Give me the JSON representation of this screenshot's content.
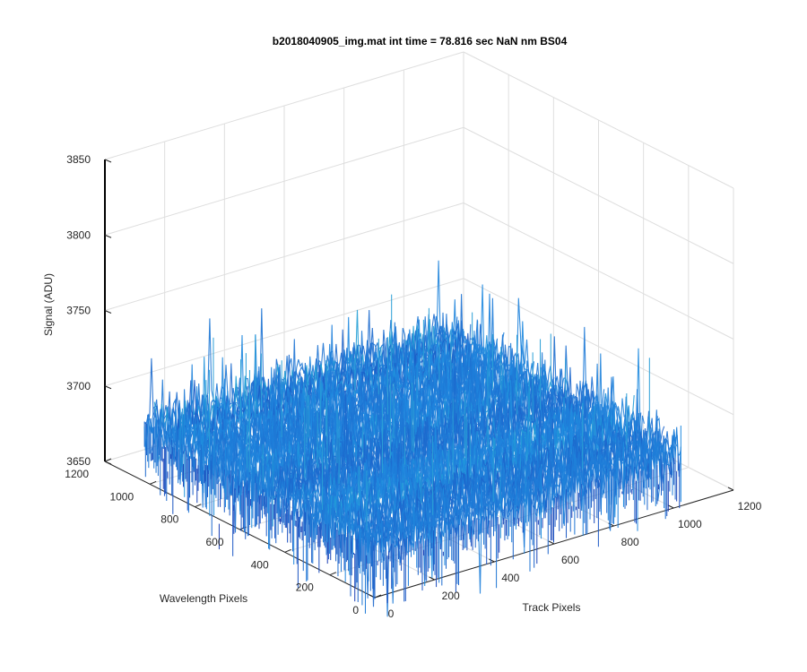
{
  "chart_data": {
    "type": "surface",
    "title": "b2018040905_img.mat int time = 78.816 sec  NaN nm BS04",
    "xlabel": "Track Pixels",
    "ylabel": "Wavelength Pixels",
    "zlabel": "Signal (ADU)",
    "x_ticks": [
      "0",
      "200",
      "400",
      "600",
      "800",
      "1000",
      "1200"
    ],
    "y_ticks": [
      "0",
      "200",
      "400",
      "600",
      "800",
      "1000",
      "1200"
    ],
    "z_ticks": [
      "3650",
      "3700",
      "3750",
      "3800",
      "3850"
    ],
    "xlim": [
      0,
      1200
    ],
    "ylim": [
      0,
      1200
    ],
    "zlim": [
      3650,
      3850
    ],
    "data_extent": {
      "x": [
        0,
        1024
      ],
      "y": [
        0,
        1024
      ]
    },
    "signal_mean": 3688,
    "signal_noise_sd": 9,
    "signal_range": [
      3630,
      3745
    ],
    "grid": true,
    "colormap": "parula",
    "colors": {
      "low": "#1a3fb5",
      "mid": "#1f8ae0",
      "high": "#25c4c0"
    }
  }
}
